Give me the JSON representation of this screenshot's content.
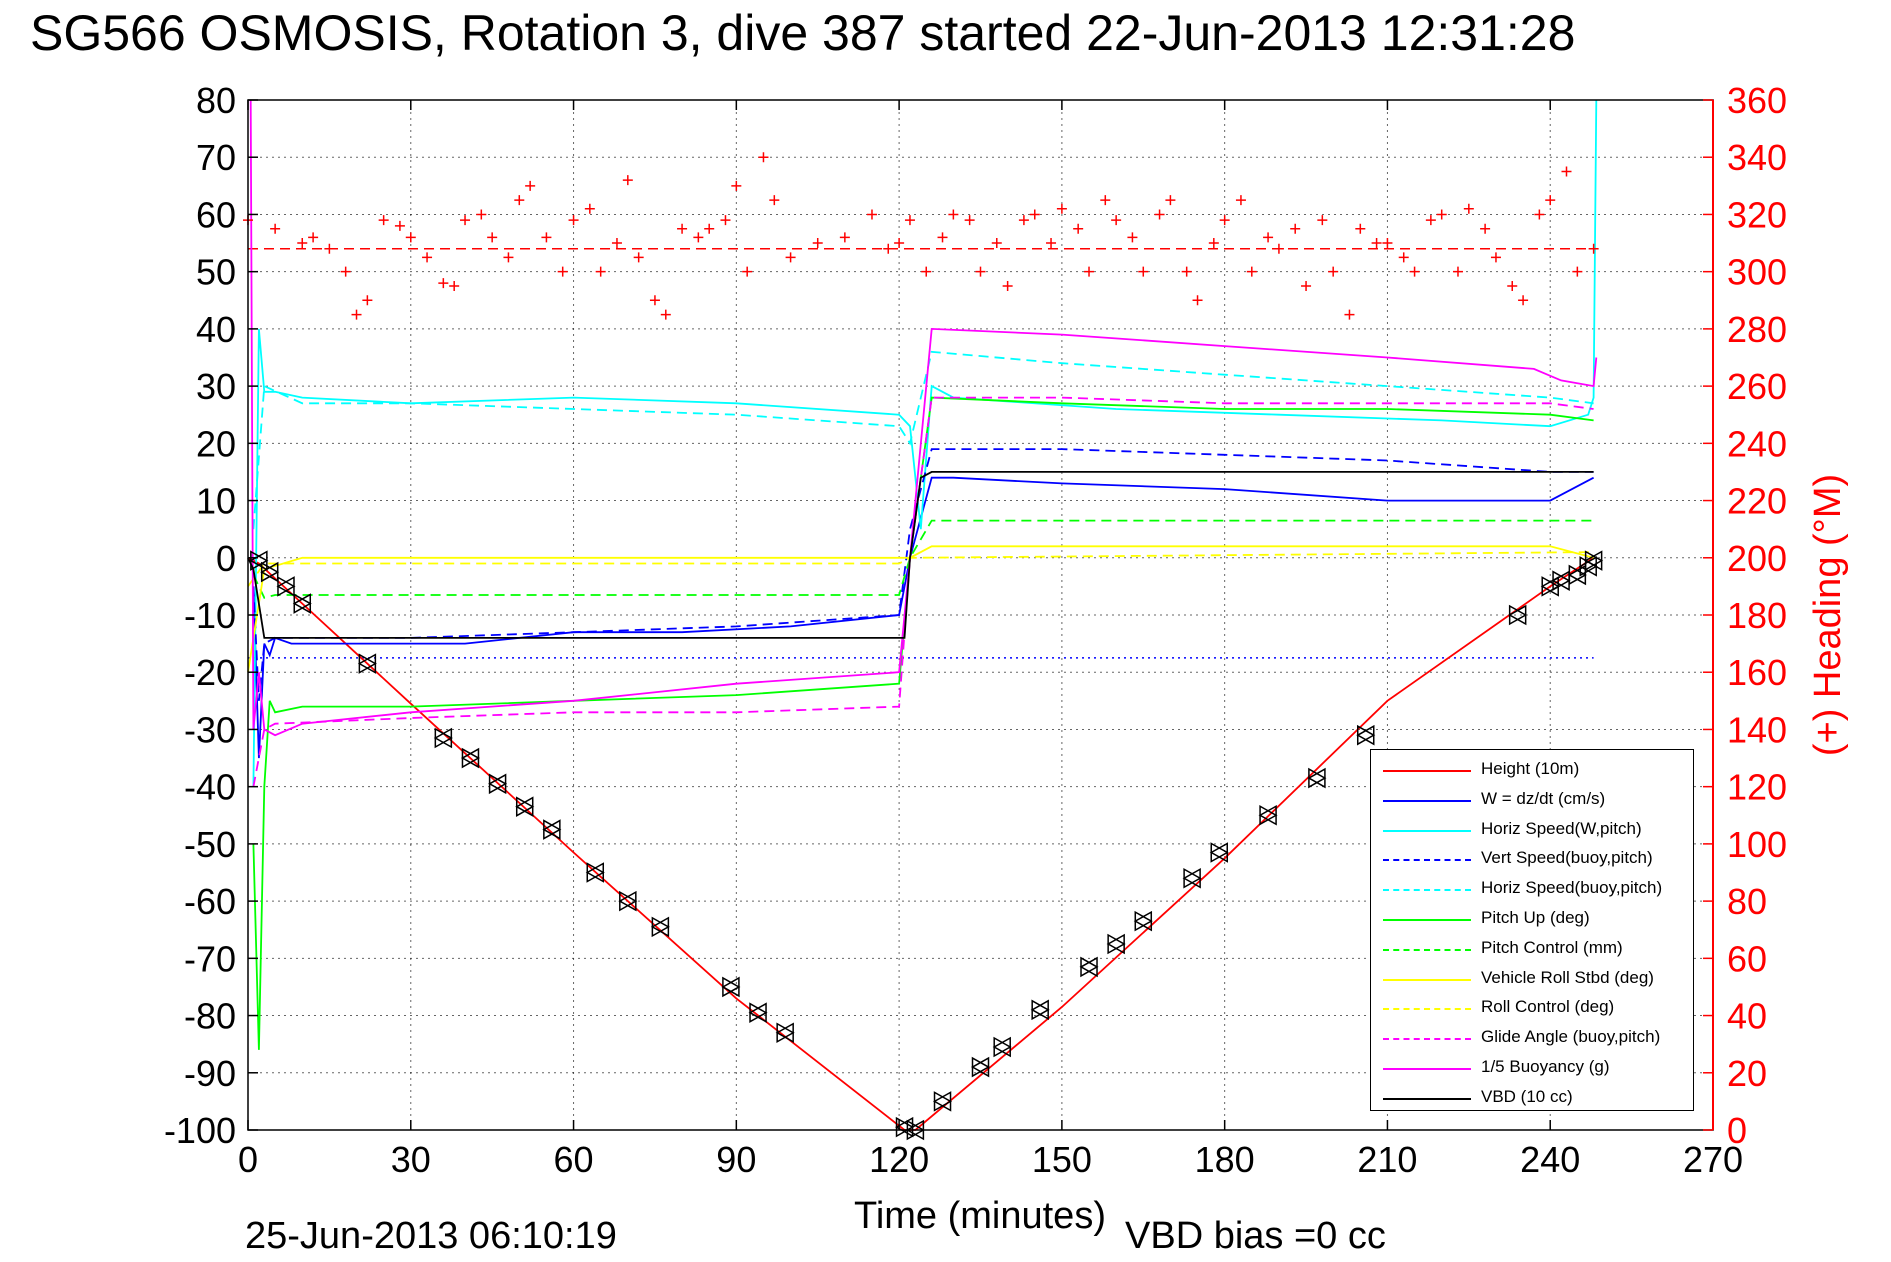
{
  "title": "SG566 OSMOSIS, Rotation 3, dive 387 started 22-Jun-2013 12:31:28",
  "footer": {
    "timestamp": "25-Jun-2013 06:10:19",
    "vbd_bias": "VBD bias =0 cc"
  },
  "chart_data": {
    "type": "line",
    "xlabel": "Time (minutes)",
    "ylabel": "",
    "y2label": "(+) Heading (°M)",
    "xlim": [
      0,
      270
    ],
    "ylim": [
      -100,
      80
    ],
    "y2lim": [
      0,
      360
    ],
    "xticks": [
      0,
      30,
      60,
      90,
      120,
      150,
      180,
      210,
      240,
      270
    ],
    "yticks": [
      -100,
      -90,
      -80,
      -70,
      -60,
      -50,
      -40,
      -30,
      -20,
      -10,
      0,
      10,
      20,
      30,
      40,
      50,
      60,
      70,
      80
    ],
    "y2ticks": [
      0,
      20,
      40,
      60,
      80,
      100,
      120,
      140,
      160,
      180,
      200,
      220,
      240,
      260,
      280,
      300,
      320,
      340,
      360
    ],
    "grid": true,
    "legend_position": "bottom-right",
    "colors": {
      "red": "#ff0000",
      "blue": "#0000ff",
      "cyan": "#00ffff",
      "green": "#00ff00",
      "yellow": "#ffff00",
      "magenta": "#ff00ff",
      "black": "#000000"
    },
    "series": [
      {
        "name": "Height (10m)",
        "color": "#ff0000",
        "style": "solid",
        "x": [
          0,
          2,
          10,
          30,
          60,
          90,
          121,
          123,
          150,
          180,
          210,
          240,
          248
        ],
        "y": [
          0,
          -1,
          -8,
          -25.5,
          -51.5,
          -77,
          -100,
          -100,
          -78.5,
          -52.5,
          -25,
          -5,
          0
        ]
      },
      {
        "name": "W = dz/dt (cm/s)",
        "color": "#0000ff",
        "style": "solid",
        "x": [
          1,
          2,
          3,
          4,
          5,
          8,
          20,
          40,
          60,
          80,
          100,
          120,
          122,
          126,
          130,
          150,
          180,
          210,
          240,
          248
        ],
        "y": [
          -5,
          -35,
          -15,
          -17,
          -14,
          -15,
          -15,
          -15,
          -13,
          -13,
          -12,
          -10,
          0,
          14,
          14,
          13,
          12,
          10,
          10,
          14
        ]
      },
      {
        "name": "Horiz Speed(W,pitch)",
        "color": "#00ffff",
        "style": "solid",
        "x": [
          1,
          2,
          3,
          5,
          10,
          30,
          60,
          90,
          120,
          122,
          124,
          126,
          130,
          160,
          190,
          220,
          240,
          247,
          248,
          248.5
        ],
        "y": [
          -40,
          40,
          29,
          29,
          28,
          27,
          28,
          27,
          25,
          23,
          5,
          30,
          28,
          26,
          25,
          24,
          23,
          25,
          28,
          80
        ]
      },
      {
        "name": "Vert Speed(buoy,pitch)",
        "color": "#0000ff",
        "style": "dashed",
        "x": [
          1,
          2,
          3,
          5,
          30,
          60,
          90,
          120,
          122,
          126,
          150,
          180,
          210,
          240,
          248
        ],
        "y": [
          -5,
          -25,
          -15,
          -14,
          -14,
          -13,
          -12,
          -10,
          5,
          19,
          19,
          18,
          17,
          15,
          15
        ]
      },
      {
        "name": "Horiz Speed(buoy,pitch)",
        "color": "#00ffff",
        "style": "dashed",
        "x": [
          1,
          3,
          10,
          30,
          60,
          90,
          120,
          122,
          126,
          150,
          180,
          210,
          240,
          248
        ],
        "y": [
          5,
          30,
          27,
          27,
          26,
          25,
          23,
          20,
          36,
          34,
          32,
          30,
          28,
          27
        ]
      },
      {
        "name": "Pitch Up (deg)",
        "color": "#00ff00",
        "style": "solid",
        "x": [
          1,
          2,
          3,
          4,
          5,
          10,
          30,
          60,
          90,
          120,
          122,
          126,
          150,
          180,
          210,
          240,
          248
        ],
        "y": [
          -50,
          -86,
          -40,
          -25,
          -27,
          -26,
          -26,
          -25,
          -24,
          -22,
          0,
          28,
          27,
          26,
          26,
          25,
          24
        ]
      },
      {
        "name": "Pitch Control (mm)",
        "color": "#00ff00",
        "style": "dashed",
        "x": [
          1,
          3,
          5,
          120,
          122,
          126,
          248
        ],
        "y": [
          -3,
          -7,
          -6.5,
          -6.5,
          0,
          6.5,
          6.5
        ]
      },
      {
        "name": "Vehicle Roll Stbd (deg)",
        "color": "#ffff00",
        "style": "solid",
        "x": [
          0,
          3,
          10,
          30,
          60,
          90,
          120,
          122,
          126,
          150,
          180,
          210,
          240,
          248
        ],
        "y": [
          -20,
          -2,
          0,
          0,
          0,
          0,
          0,
          0,
          2,
          2,
          2,
          2,
          2,
          0
        ]
      },
      {
        "name": "Roll Control (deg)",
        "color": "#ffff00",
        "style": "dashed",
        "x": [
          0,
          3,
          120,
          122,
          248
        ],
        "y": [
          -5,
          -1,
          -1,
          0,
          1
        ]
      },
      {
        "name": "Glide Angle (buoy,pitch)",
        "color": "#ff00ff",
        "style": "dashed",
        "x": [
          1,
          3,
          5,
          30,
          60,
          90,
          120,
          122,
          126,
          150,
          180,
          210,
          240,
          248
        ],
        "y": [
          -40,
          -30,
          -29,
          -28,
          -27,
          -27,
          -26,
          0,
          28,
          28,
          27,
          27,
          27,
          26
        ]
      },
      {
        "name": "1/5 Buoyancy (g)",
        "color": "#ff00ff",
        "style": "solid",
        "x": [
          0.5,
          1,
          2,
          3,
          5,
          10,
          30,
          60,
          90,
          120,
          122,
          126,
          150,
          180,
          210,
          237,
          242,
          248,
          248.5
        ],
        "y": [
          80,
          -30,
          -20,
          -30,
          -31,
          -29,
          -27,
          -25,
          -22,
          -20,
          0,
          40,
          39,
          37,
          35,
          33,
          31,
          30,
          35
        ]
      },
      {
        "name": "VBD (10 cc)",
        "color": "#000000",
        "style": "solid",
        "x": [
          0,
          1,
          3,
          5,
          20,
          120,
          121,
          122,
          124,
          126,
          248
        ],
        "y": [
          0,
          -2,
          -14,
          -14,
          -14,
          -14,
          -14,
          0,
          14,
          15,
          15
        ]
      }
    ],
    "reference_lines": [
      {
        "axis": "y",
        "value": -17.5,
        "color": "#0000ff",
        "style": "dotted",
        "x_range": [
          0,
          248
        ]
      },
      {
        "axis": "y2",
        "value": 308,
        "color": "#ff0000",
        "style": "dashed",
        "x_range": [
          0,
          248
        ]
      }
    ],
    "markers": [
      {
        "shape": "triangle",
        "color": "#000000",
        "x": [
          2,
          4,
          7,
          10,
          22,
          36,
          41,
          46,
          51,
          56,
          64,
          70,
          76,
          89,
          94,
          99,
          121,
          123,
          128,
          135,
          139,
          146,
          155,
          160,
          165,
          174,
          179,
          188,
          197,
          206,
          234,
          240,
          242,
          245,
          247,
          248
        ],
        "y": [
          -0.5,
          -2.5,
          -5,
          -8,
          -18.5,
          -31.5,
          -35,
          -39.5,
          -43.5,
          -47.5,
          -55,
          -60,
          -64.5,
          -75,
          -79.5,
          -83,
          -99.5,
          -100,
          -95,
          -89,
          -85.5,
          -79,
          -71.5,
          -67.5,
          -63.5,
          -56,
          -51.5,
          -45,
          -38.5,
          -31,
          -10,
          -5,
          -4,
          -3,
          -1.5,
          -0.5
        ]
      }
    ],
    "heading_series": {
      "name": "Heading",
      "color": "#ff0000",
      "marker": "+",
      "axis": "y2",
      "x": [
        0,
        5,
        10,
        12,
        15,
        18,
        20,
        22,
        25,
        28,
        30,
        33,
        36,
        38,
        40,
        43,
        45,
        48,
        50,
        52,
        55,
        58,
        60,
        63,
        65,
        68,
        70,
        72,
        75,
        77,
        80,
        83,
        85,
        88,
        90,
        92,
        95,
        97,
        100,
        105,
        110,
        115,
        118,
        120,
        122,
        125,
        128,
        130,
        133,
        135,
        138,
        140,
        143,
        145,
        148,
        150,
        153,
        155,
        158,
        160,
        163,
        165,
        168,
        170,
        173,
        175,
        178,
        180,
        183,
        185,
        188,
        190,
        193,
        195,
        198,
        200,
        203,
        205,
        208,
        210,
        213,
        215,
        218,
        220,
        223,
        225,
        228,
        230,
        233,
        235,
        238,
        240,
        243,
        245,
        248
      ],
      "y": [
        318,
        315,
        310,
        312,
        308,
        300,
        285,
        290,
        318,
        316,
        312,
        305,
        296,
        295,
        318,
        320,
        312,
        305,
        325,
        330,
        312,
        300,
        318,
        322,
        300,
        310,
        332,
        305,
        290,
        285,
        315,
        312,
        315,
        318,
        330,
        300,
        340,
        325,
        305,
        310,
        312,
        320,
        308,
        310,
        318,
        300,
        312,
        320,
        318,
        300,
        310,
        295,
        318,
        320,
        310,
        322,
        315,
        300,
        325,
        318,
        312,
        300,
        320,
        325,
        300,
        290,
        310,
        318,
        325,
        300,
        312,
        308,
        315,
        295,
        318,
        300,
        285,
        315,
        310,
        310,
        305,
        300,
        318,
        320,
        300,
        322,
        315,
        305,
        295,
        290,
        320,
        325,
        335,
        300,
        308
      ]
    }
  }
}
